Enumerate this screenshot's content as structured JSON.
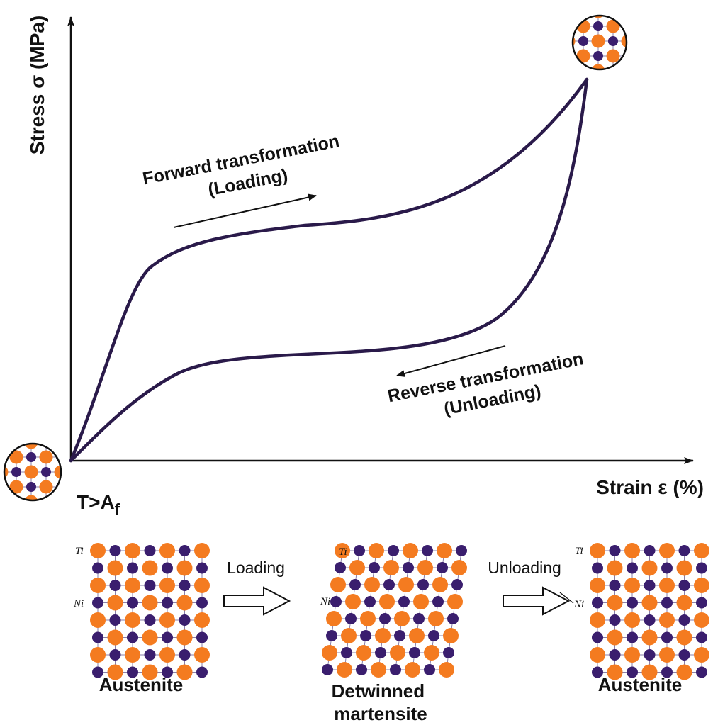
{
  "axes": {
    "y_label": "Stress σ (MPa)",
    "x_label": "Strain ε (%)",
    "temperature_condition": "T>A",
    "temperature_subscript": "f"
  },
  "annotations": {
    "forward_line1": "Forward transformation",
    "forward_line2": "(Loading)",
    "reverse_line1": "Reverse transformation",
    "reverse_line2": "(Unloading)"
  },
  "lattices": [
    {
      "caption": "Austenite",
      "ti_label": "Ti",
      "ni_label": "Ni"
    },
    {
      "caption_line1": "Detwinned",
      "caption_line2": "martensite",
      "ti_label": "Ti",
      "ni_label": "Ni"
    },
    {
      "caption": "Austenite",
      "ti_label": "Ti",
      "ni_label": "Ni"
    }
  ],
  "transitions": {
    "loading": "Loading",
    "unloading": "Unloading"
  },
  "colors": {
    "ti_atom": "#F47B20",
    "ni_atom": "#3A1E6E",
    "curve": "#2A1A4A",
    "bond": "#8A7FA8"
  }
}
